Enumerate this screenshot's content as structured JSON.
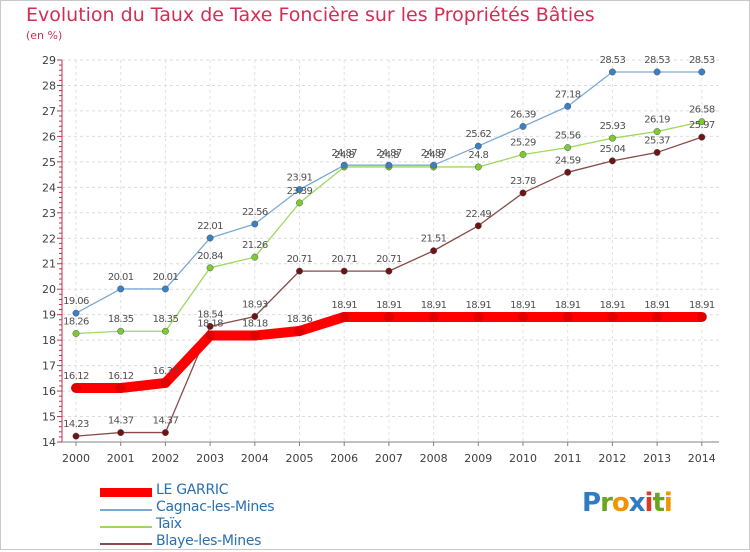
{
  "header": {
    "title": "Evolution du Taux de Taxe Foncière sur les Propriétés Bâties",
    "unit": "(en %)"
  },
  "logo": {
    "text": "Proxiti",
    "letters": [
      "P",
      "r",
      "o",
      "x",
      "i",
      "t",
      "i"
    ],
    "colors": [
      "#2e7dc4",
      "#6aa520",
      "#f29400",
      "#2e7dc4",
      "#d93b2b",
      "#6aa520",
      "#f29400"
    ]
  },
  "chart_data": {
    "type": "line",
    "title": "Evolution du Taux de Taxe Foncière sur les Propriétés Bâties",
    "ylabel": "(en %)",
    "xlabel": "",
    "x": [
      "2000",
      "2001",
      "2002",
      "2003",
      "2004",
      "2005",
      "2006",
      "2007",
      "2008",
      "2009",
      "2010",
      "2011",
      "2012",
      "2013",
      "2014"
    ],
    "ylim": [
      14,
      29
    ],
    "yticks": [
      "14",
      "15",
      "16",
      "17",
      "18",
      "19",
      "20",
      "21",
      "22",
      "23",
      "24",
      "25",
      "26",
      "27",
      "28",
      "29"
    ],
    "legend_position": "bottom-left",
    "series": [
      {
        "name": "LE GARRIC",
        "color": "#ff0000",
        "marker": "#e00000",
        "values": [
          16.12,
          16.12,
          16.32,
          18.18,
          18.18,
          18.36,
          18.91,
          18.91,
          18.91,
          18.91,
          18.91,
          18.91,
          18.91,
          18.91,
          18.91
        ],
        "labels": [
          "16.12",
          "16.12",
          "16.32",
          "18.18",
          "18.18",
          "18.36",
          "18.91",
          "18.91",
          "18.91",
          "18.91",
          "18.91",
          "18.91",
          "18.91",
          "18.91",
          "18.91"
        ]
      },
      {
        "name": "Cagnac-les-Mines",
        "color": "#7aa9d6",
        "marker": "#3a80c6",
        "values": [
          19.06,
          20.01,
          20.01,
          22.01,
          22.56,
          23.91,
          24.87,
          24.87,
          24.87,
          25.62,
          26.39,
          27.18,
          28.53,
          28.53,
          28.53
        ],
        "labels": [
          "19.06",
          "20.01",
          "20.01",
          "22.01",
          "22.56",
          "23.91",
          "24.87",
          "24.87",
          "24.87",
          "25.62",
          "26.39",
          "27.18",
          "28.53",
          "28.53",
          "28.53"
        ]
      },
      {
        "name": "Taïx",
        "color": "#9ed85f",
        "marker": "#7ccc2e",
        "values": [
          18.26,
          18.35,
          18.35,
          20.84,
          21.26,
          23.39,
          24.8,
          24.8,
          24.8,
          24.8,
          25.29,
          25.56,
          25.93,
          26.19,
          26.58
        ],
        "labels": [
          "18.26",
          "18.35",
          "18.35",
          "20.84",
          "21.26",
          "23.39",
          "24.8",
          "24.8",
          "24.8",
          "24.8",
          "25.29",
          "25.56",
          "25.93",
          "26.19",
          "26.58"
        ]
      },
      {
        "name": "Blaye-les-Mines",
        "color": "#8a4a4a",
        "marker": "#6e1414",
        "values": [
          14.23,
          14.37,
          14.37,
          18.54,
          18.93,
          20.71,
          20.71,
          20.71,
          21.51,
          22.49,
          23.78,
          24.59,
          25.04,
          25.37,
          25.97
        ],
        "labels": [
          "14.23",
          "14.37",
          "14.37",
          "18.54",
          "18.93",
          "20.71",
          "20.71",
          "20.71",
          "21.51",
          "22.49",
          "23.78",
          "24.59",
          "25.04",
          "25.37",
          "25.97"
        ]
      }
    ]
  }
}
